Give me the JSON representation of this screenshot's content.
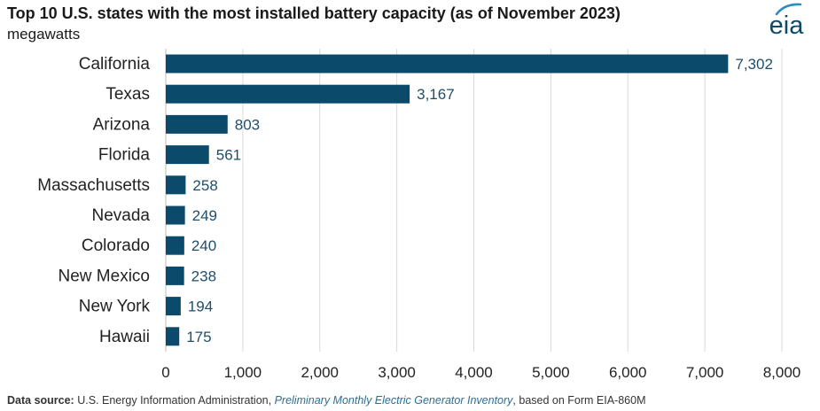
{
  "chart_data": {
    "type": "bar",
    "orientation": "horizontal",
    "title": "Top 10 U.S. states with the most installed battery capacity (as of November 2023)",
    "subtitle": "megawatts",
    "categories": [
      "California",
      "Texas",
      "Arizona",
      "Florida",
      "Massachusetts",
      "Nevada",
      "Colorado",
      "New Mexico",
      "New York",
      "Hawaii"
    ],
    "values": [
      7302,
      3167,
      803,
      561,
      258,
      249,
      240,
      238,
      194,
      175
    ],
    "value_labels": [
      "7,302",
      "3,167",
      "803",
      "561",
      "258",
      "249",
      "240",
      "238",
      "194",
      "175"
    ],
    "xlim": [
      0,
      8000
    ],
    "x_ticks": [
      0,
      1000,
      2000,
      3000,
      4000,
      5000,
      6000,
      7000,
      8000
    ],
    "x_tick_labels": [
      "0",
      "1,000",
      "2,000",
      "3,000",
      "4,000",
      "5,000",
      "6,000",
      "7,000",
      "8,000"
    ],
    "grid": true,
    "bar_color": "#0b4a6b",
    "grid_color": "#d9d9d9"
  },
  "logo": {
    "text": "eia",
    "color": "#0b4a6b",
    "accent": "#2e8bc0"
  },
  "source": {
    "label": "Data source:",
    "text1": "U.S. Energy Information Administration,",
    "link": "Preliminary Monthly Electric Generator Inventory",
    "text2": ", based on Form EIA-860M"
  }
}
